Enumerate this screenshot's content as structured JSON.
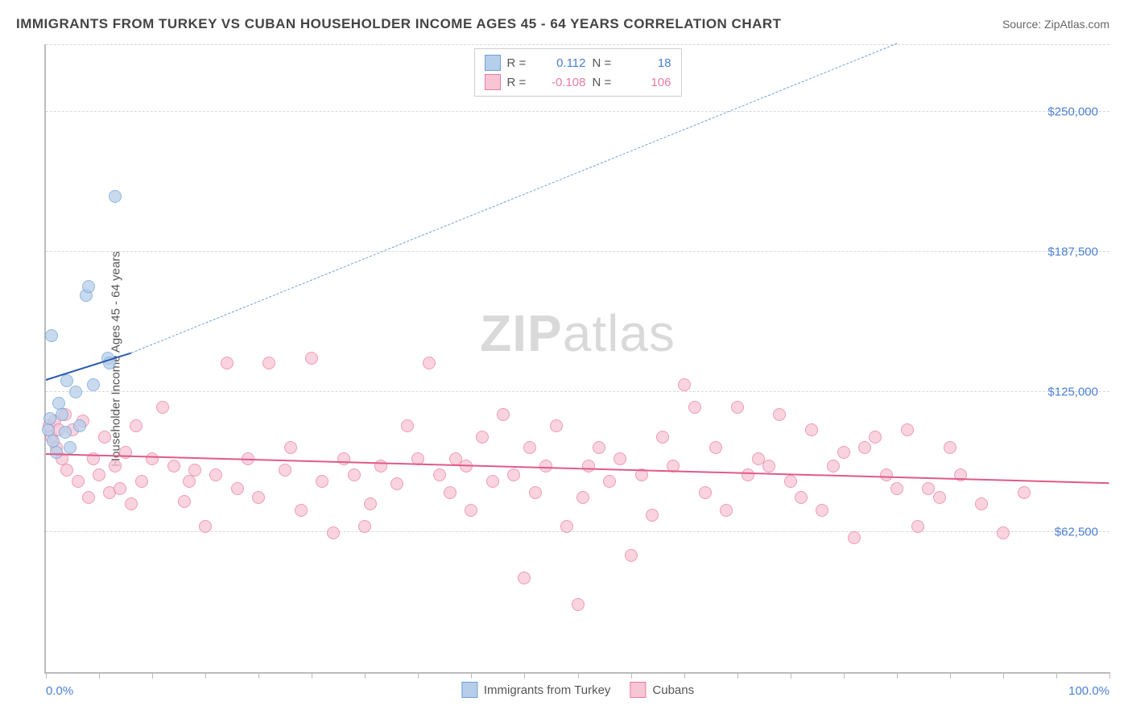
{
  "title": "IMMIGRANTS FROM TURKEY VS CUBAN HOUSEHOLDER INCOME AGES 45 - 64 YEARS CORRELATION CHART",
  "source": "Source: ZipAtlas.com",
  "ylabel": "Householder Income Ages 45 - 64 years",
  "watermark_bold": "ZIP",
  "watermark_rest": "atlas",
  "chart": {
    "type": "scatter",
    "xlim": [
      0,
      100
    ],
    "ylim": [
      0,
      280000
    ],
    "x_axis_left": "0.0%",
    "x_axis_right": "100.0%",
    "y_ticks": [
      {
        "v": 62500,
        "label": "$62,500"
      },
      {
        "v": 125000,
        "label": "$125,000"
      },
      {
        "v": 187500,
        "label": "$187,500"
      },
      {
        "v": 250000,
        "label": "$250,000"
      }
    ],
    "x_minor_ticks": [
      0,
      5,
      10,
      15,
      20,
      25,
      30,
      35,
      40,
      45,
      50,
      55,
      60,
      65,
      70,
      75,
      80,
      85,
      90,
      95,
      100
    ],
    "grid_color": "#d8d8d8",
    "background_color": "#ffffff",
    "series": [
      {
        "name": "Immigrants from Turkey",
        "color_fill": "#b6cee9",
        "color_stroke": "#6f9fd8",
        "r_label": "R =",
        "r_value": "0.112",
        "r_color": "#4a7fd6",
        "n_label": "N =",
        "n_value": "18",
        "n_color": "#4a7fd6",
        "trend": {
          "solid": {
            "x1": 0,
            "y1": 130000,
            "x2": 8,
            "y2": 142000,
            "width": 2.5,
            "color": "#2b5db0"
          },
          "dashed": {
            "x1": 8,
            "y1": 142000,
            "x2": 80,
            "y2": 280000,
            "width": 1.5,
            "color": "#6f9fd8",
            "dash": true
          }
        },
        "points": [
          [
            0.2,
            108000
          ],
          [
            0.4,
            113000
          ],
          [
            0.5,
            150000
          ],
          [
            0.7,
            103000
          ],
          [
            1.0,
            98000
          ],
          [
            1.2,
            120000
          ],
          [
            1.5,
            115000
          ],
          [
            1.8,
            107000
          ],
          [
            2.0,
            130000
          ],
          [
            2.3,
            100000
          ],
          [
            2.8,
            125000
          ],
          [
            3.2,
            110000
          ],
          [
            3.8,
            168000
          ],
          [
            4.0,
            172000
          ],
          [
            4.5,
            128000
          ],
          [
            5.8,
            140000
          ],
          [
            6.0,
            138000
          ],
          [
            6.5,
            212000
          ]
        ]
      },
      {
        "name": "Cubans",
        "color_fill": "#f7c5d3",
        "color_stroke": "#e87ca1",
        "r_label": "R =",
        "r_value": "-0.108",
        "r_color": "#e87ca1",
        "n_label": "N =",
        "n_value": "106",
        "n_color": "#e87ca1",
        "trend": {
          "solid": {
            "x1": 0,
            "y1": 97000,
            "x2": 100,
            "y2": 84000,
            "width": 2.5,
            "color": "#e05a87"
          }
        },
        "points": [
          [
            0.3,
            110000
          ],
          [
            0.5,
            105000
          ],
          [
            0.8,
            112000
          ],
          [
            1.0,
            100000
          ],
          [
            1.2,
            108000
          ],
          [
            1.5,
            95000
          ],
          [
            1.8,
            115000
          ],
          [
            2.0,
            90000
          ],
          [
            2.5,
            108000
          ],
          [
            3.0,
            85000
          ],
          [
            3.5,
            112000
          ],
          [
            4.0,
            78000
          ],
          [
            4.5,
            95000
          ],
          [
            5.0,
            88000
          ],
          [
            5.5,
            105000
          ],
          [
            6.0,
            80000
          ],
          [
            6.5,
            92000
          ],
          [
            7.0,
            82000
          ],
          [
            7.5,
            98000
          ],
          [
            8.0,
            75000
          ],
          [
            8.5,
            110000
          ],
          [
            9.0,
            85000
          ],
          [
            10.0,
            95000
          ],
          [
            11.0,
            118000
          ],
          [
            12.0,
            92000
          ],
          [
            13.0,
            76000
          ],
          [
            13.5,
            85000
          ],
          [
            14.0,
            90000
          ],
          [
            15.0,
            65000
          ],
          [
            16.0,
            88000
          ],
          [
            17.0,
            138000
          ],
          [
            18.0,
            82000
          ],
          [
            19.0,
            95000
          ],
          [
            20.0,
            78000
          ],
          [
            21.0,
            138000
          ],
          [
            22.5,
            90000
          ],
          [
            23.0,
            100000
          ],
          [
            24.0,
            72000
          ],
          [
            25.0,
            140000
          ],
          [
            26.0,
            85000
          ],
          [
            27.0,
            62000
          ],
          [
            28.0,
            95000
          ],
          [
            29.0,
            88000
          ],
          [
            30.0,
            65000
          ],
          [
            30.5,
            75000
          ],
          [
            31.5,
            92000
          ],
          [
            33.0,
            84000
          ],
          [
            34.0,
            110000
          ],
          [
            35.0,
            95000
          ],
          [
            36.0,
            138000
          ],
          [
            37.0,
            88000
          ],
          [
            38.0,
            80000
          ],
          [
            38.5,
            95000
          ],
          [
            39.5,
            92000
          ],
          [
            40.0,
            72000
          ],
          [
            41.0,
            105000
          ],
          [
            42.0,
            85000
          ],
          [
            43.0,
            115000
          ],
          [
            44.0,
            88000
          ],
          [
            45.0,
            42000
          ],
          [
            45.5,
            100000
          ],
          [
            46.0,
            80000
          ],
          [
            47.0,
            92000
          ],
          [
            48.0,
            110000
          ],
          [
            49.0,
            65000
          ],
          [
            50.0,
            30000
          ],
          [
            50.5,
            78000
          ],
          [
            51.0,
            92000
          ],
          [
            52.0,
            100000
          ],
          [
            53.0,
            85000
          ],
          [
            54.0,
            95000
          ],
          [
            55.0,
            52000
          ],
          [
            56.0,
            88000
          ],
          [
            57.0,
            70000
          ],
          [
            58.0,
            105000
          ],
          [
            59.0,
            92000
          ],
          [
            60.0,
            128000
          ],
          [
            61.0,
            118000
          ],
          [
            62.0,
            80000
          ],
          [
            63.0,
            100000
          ],
          [
            64.0,
            72000
          ],
          [
            65.0,
            118000
          ],
          [
            66.0,
            88000
          ],
          [
            67.0,
            95000
          ],
          [
            68.0,
            92000
          ],
          [
            69.0,
            115000
          ],
          [
            70.0,
            85000
          ],
          [
            71.0,
            78000
          ],
          [
            72.0,
            108000
          ],
          [
            73.0,
            72000
          ],
          [
            74.0,
            92000
          ],
          [
            75.0,
            98000
          ],
          [
            76.0,
            60000
          ],
          [
            77.0,
            100000
          ],
          [
            78.0,
            105000
          ],
          [
            79.0,
            88000
          ],
          [
            80.0,
            82000
          ],
          [
            81.0,
            108000
          ],
          [
            82.0,
            65000
          ],
          [
            83.0,
            82000
          ],
          [
            84.0,
            78000
          ],
          [
            85.0,
            100000
          ],
          [
            86.0,
            88000
          ],
          [
            88.0,
            75000
          ],
          [
            90.0,
            62000
          ],
          [
            92.0,
            80000
          ]
        ]
      }
    ]
  },
  "bottom_legend": [
    {
      "label": "Immigrants from Turkey",
      "fill": "#b6cee9",
      "stroke": "#6f9fd8"
    },
    {
      "label": "Cubans",
      "fill": "#f7c5d3",
      "stroke": "#e87ca1"
    }
  ]
}
